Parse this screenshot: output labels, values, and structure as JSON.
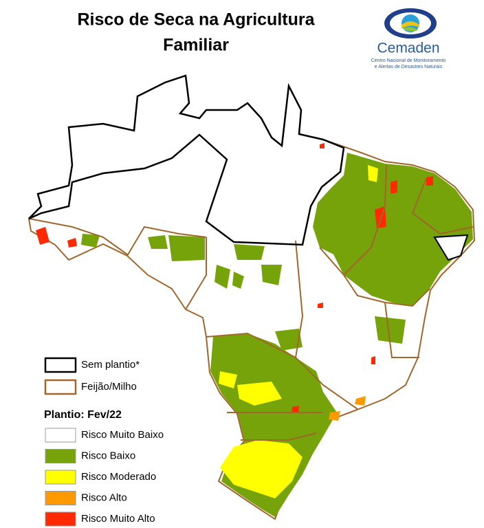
{
  "header": {
    "title_lines": [
      "Risco de Seca na Agricultura",
      "Familiar"
    ]
  },
  "logo": {
    "name": "Cemaden",
    "subtitle_lines": [
      "Centro Nacional de Monitoramento",
      "e Alertas de Desastres Naturais"
    ]
  },
  "legend": {
    "boundaries": [
      {
        "label": "Sem plantio*",
        "color": "#000000"
      },
      {
        "label": "Feijão/Milho",
        "color": "#a0662a"
      }
    ],
    "section_title": "Plantio: Fev/22",
    "classes": [
      {
        "label": "Risco Muito Baixo",
        "color": "#ffffff"
      },
      {
        "label": "Risco Baixo",
        "color": "#76a30a"
      },
      {
        "label": "Risco Moderado",
        "color": "#ffff00"
      },
      {
        "label": "Risco Alto",
        "color": "#ff9900"
      },
      {
        "label": "Risco Muito Alto",
        "color": "#ff2a00"
      }
    ]
  }
}
